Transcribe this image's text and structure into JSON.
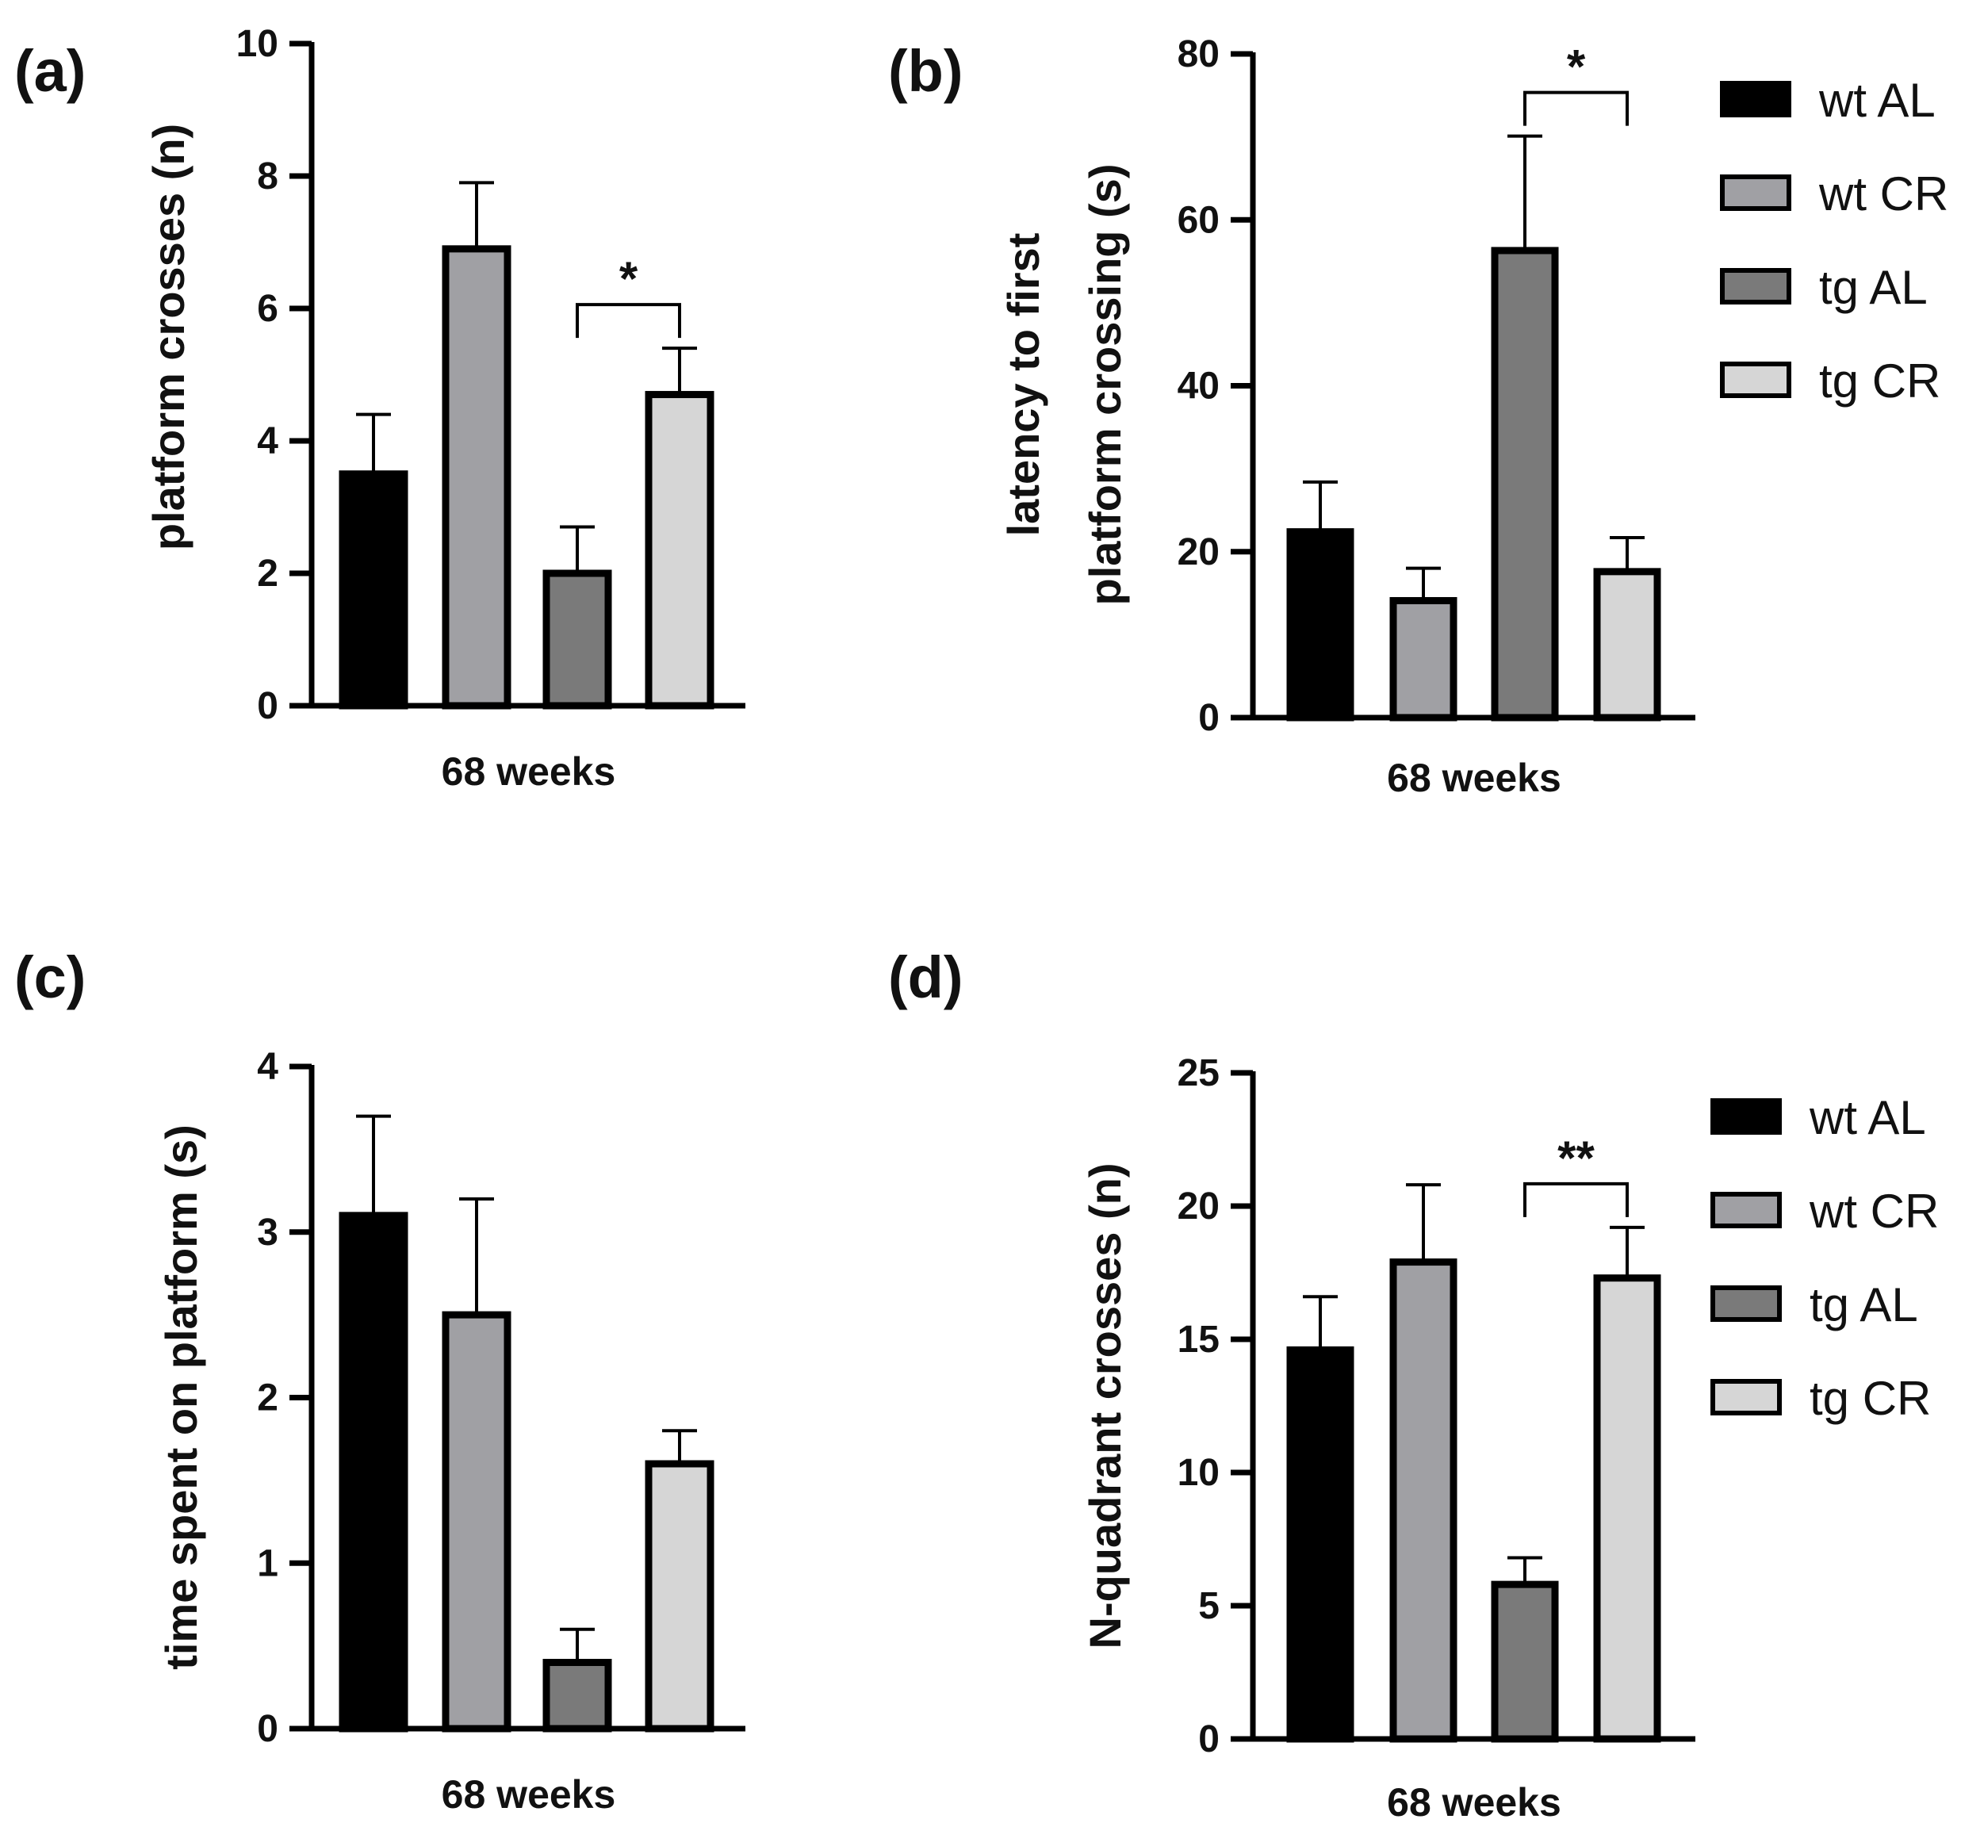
{
  "figure": {
    "legend_items": [
      {
        "label": "wt AL",
        "color": "#000000"
      },
      {
        "label": "wt CR",
        "color": "#a0a0a4"
      },
      {
        "label": "tg AL",
        "color": "#7a7a7a"
      },
      {
        "label": "tg CR",
        "color": "#d6d6d6"
      }
    ]
  },
  "chart_data": [
    {
      "panel_label": "(a)",
      "type": "bar",
      "title": "",
      "xlabel": "68 weeks",
      "ylabel": "platform crosses (n)",
      "ylim": [
        0,
        10
      ],
      "yticks": [
        "0",
        "2",
        "4",
        "6",
        "8",
        "10"
      ],
      "categories": [
        "wt AL",
        "wt CR",
        "tg AL",
        "tg CR"
      ],
      "values": [
        3.5,
        6.9,
        2.0,
        4.7
      ],
      "errors": [
        0.9,
        1.0,
        0.7,
        0.7
      ],
      "significance": [
        {
          "from": 2,
          "to": 3,
          "label": "*"
        }
      ],
      "legend": false
    },
    {
      "panel_label": "(b)",
      "type": "bar",
      "title": "",
      "xlabel": "68 weeks",
      "ylabel": [
        "latency to first",
        "platform crossing (s)"
      ],
      "ylim": [
        0,
        80
      ],
      "yticks": [
        "0",
        "20",
        "40",
        "60",
        "80"
      ],
      "categories": [
        "wt AL",
        "wt CR",
        "tg AL",
        "tg CR"
      ],
      "values": [
        22.4,
        14.1,
        56.3,
        17.6
      ],
      "errors": [
        6.0,
        3.9,
        13.8,
        4.1
      ],
      "significance": [
        {
          "from": 2,
          "to": 3,
          "label": "*"
        }
      ],
      "legend": true
    },
    {
      "panel_label": "(c)",
      "type": "bar",
      "title": "",
      "xlabel": "68 weeks",
      "ylabel": "time spent on platform (s)",
      "ylim": [
        0,
        4
      ],
      "yticks": [
        "0",
        "1",
        "2",
        "3",
        "4"
      ],
      "categories": [
        "wt AL",
        "wt CR",
        "tg AL",
        "tg CR"
      ],
      "values": [
        3.1,
        2.5,
        0.4,
        1.6
      ],
      "errors": [
        0.6,
        0.7,
        0.2,
        0.2
      ],
      "significance": [],
      "legend": false
    },
    {
      "panel_label": "(d)",
      "type": "bar",
      "title": "",
      "xlabel": "68 weeks",
      "ylabel": "N-quadrant crosses (n)",
      "ylim": [
        0,
        25
      ],
      "yticks": [
        "0",
        "5",
        "10",
        "15",
        "20",
        "25"
      ],
      "categories": [
        "wt AL",
        "wt CR",
        "tg AL",
        "tg CR"
      ],
      "values": [
        14.6,
        17.9,
        5.8,
        17.3
      ],
      "errors": [
        2.0,
        2.9,
        1.0,
        1.9
      ],
      "significance": [
        {
          "from": 2,
          "to": 3,
          "label": "**"
        }
      ],
      "legend": true
    }
  ]
}
